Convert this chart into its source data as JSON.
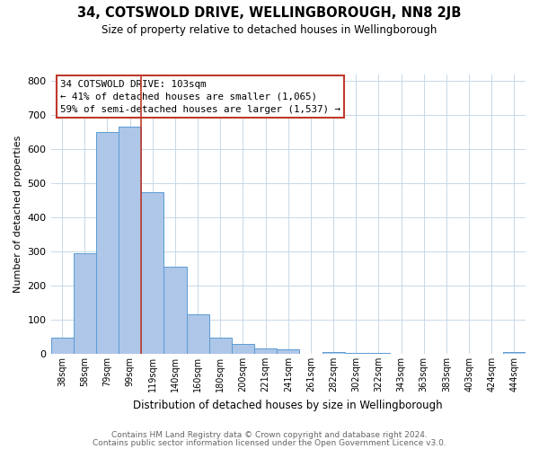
{
  "title": "34, COTSWOLD DRIVE, WELLINGBOROUGH, NN8 2JB",
  "subtitle": "Size of property relative to detached houses in Wellingborough",
  "xlabel": "Distribution of detached houses by size in Wellingborough",
  "ylabel": "Number of detached properties",
  "bar_labels": [
    "38sqm",
    "58sqm",
    "79sqm",
    "99sqm",
    "119sqm",
    "140sqm",
    "160sqm",
    "180sqm",
    "200sqm",
    "221sqm",
    "241sqm",
    "261sqm",
    "282sqm",
    "302sqm",
    "322sqm",
    "343sqm",
    "363sqm",
    "383sqm",
    "403sqm",
    "424sqm",
    "444sqm"
  ],
  "bar_values": [
    48,
    295,
    650,
    665,
    475,
    255,
    115,
    48,
    28,
    15,
    12,
    1,
    5,
    3,
    2,
    1,
    1,
    0,
    0,
    0,
    5
  ],
  "bar_color": "#aec6e8",
  "bar_edge_color": "#5b9bd5",
  "vline_color": "#c0392b",
  "annotation_line1": "34 COTSWOLD DRIVE: 103sqm",
  "annotation_line2": "← 41% of detached houses are smaller (1,065)",
  "annotation_line3": "59% of semi-detached houses are larger (1,537) →",
  "annotation_box_color": "#ffffff",
  "annotation_box_edge": "#c0392b",
  "ylim": [
    0,
    820
  ],
  "yticks": [
    0,
    100,
    200,
    300,
    400,
    500,
    600,
    700,
    800
  ],
  "footer1": "Contains HM Land Registry data © Crown copyright and database right 2024.",
  "footer2": "Contains public sector information licensed under the Open Government Licence v3.0.",
  "bg_color": "#ffffff",
  "grid_color": "#c8d8e8",
  "title_fontsize": 10.5,
  "subtitle_fontsize": 8.5,
  "xlabel_fontsize": 8.5,
  "ylabel_fontsize": 8,
  "tick_fontsize": 7,
  "annotation_fontsize": 7.8,
  "footer_fontsize": 6.5
}
